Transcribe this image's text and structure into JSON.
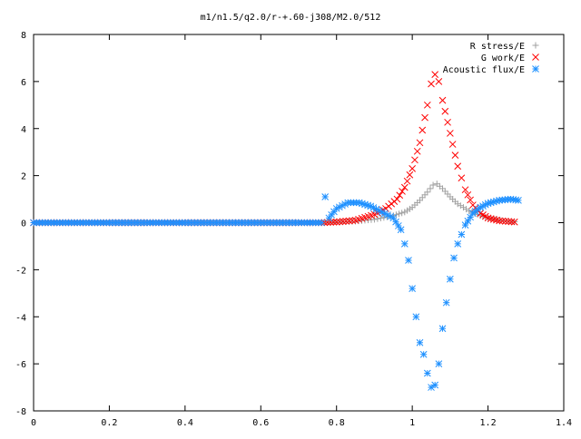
{
  "chart_data": {
    "type": "scatter",
    "title": "m1/n1.5/q2.0/r-+.60-j308/M2.0/512",
    "xlabel": "",
    "ylabel": "",
    "xlim": [
      0,
      1.4
    ],
    "ylim": [
      -8,
      8
    ],
    "x_ticks": [
      "0",
      "0.2",
      "0.4",
      "0.6",
      "0.8",
      "1",
      "1.2",
      "1.4"
    ],
    "y_ticks": [
      "8",
      "6",
      "4",
      "2",
      "0",
      "-2",
      "-4",
      "-6",
      "-8"
    ],
    "grid": false,
    "legend_position": "top-right",
    "series": [
      {
        "name": "R stress/E",
        "marker": "plus",
        "color": "#a0a0a0",
        "points": [
          [
            0.0,
            0
          ],
          [
            0.1,
            0
          ],
          [
            0.2,
            0
          ],
          [
            0.3,
            0
          ],
          [
            0.4,
            0
          ],
          [
            0.5,
            0
          ],
          [
            0.6,
            0
          ],
          [
            0.7,
            0
          ],
          [
            0.76,
            0
          ],
          [
            0.8,
            0.02
          ],
          [
            0.85,
            0.06
          ],
          [
            0.9,
            0.14
          ],
          [
            0.95,
            0.3
          ],
          [
            0.98,
            0.45
          ],
          [
            1.0,
            0.65
          ],
          [
            1.02,
            0.95
          ],
          [
            1.04,
            1.3
          ],
          [
            1.055,
            1.6
          ],
          [
            1.065,
            1.65
          ],
          [
            1.08,
            1.45
          ],
          [
            1.1,
            1.1
          ],
          [
            1.12,
            0.8
          ],
          [
            1.15,
            0.5
          ],
          [
            1.18,
            0.3
          ],
          [
            1.2,
            0.2
          ],
          [
            1.24,
            0.08
          ],
          [
            1.27,
            0.04
          ]
        ]
      },
      {
        "name": "G work/E",
        "marker": "cross",
        "color": "#ff0000",
        "points": [
          [
            0.0,
            0
          ],
          [
            0.1,
            0
          ],
          [
            0.2,
            0
          ],
          [
            0.3,
            0
          ],
          [
            0.4,
            0
          ],
          [
            0.5,
            0
          ],
          [
            0.6,
            0
          ],
          [
            0.7,
            0
          ],
          [
            0.76,
            0
          ],
          [
            0.8,
            0.03
          ],
          [
            0.85,
            0.1
          ],
          [
            0.9,
            0.35
          ],
          [
            0.93,
            0.6
          ],
          [
            0.96,
            1.0
          ],
          [
            0.98,
            1.5
          ],
          [
            1.0,
            2.3
          ],
          [
            1.02,
            3.4
          ],
          [
            1.04,
            5.0
          ],
          [
            1.05,
            5.9
          ],
          [
            1.06,
            6.3
          ],
          [
            1.07,
            6.0
          ],
          [
            1.08,
            5.2
          ],
          [
            1.1,
            3.8
          ],
          [
            1.12,
            2.4
          ],
          [
            1.14,
            1.4
          ],
          [
            1.16,
            0.75
          ],
          [
            1.18,
            0.4
          ],
          [
            1.2,
            0.2
          ],
          [
            1.23,
            0.08
          ],
          [
            1.27,
            0.03
          ]
        ]
      },
      {
        "name": "Acoustic flux/E",
        "marker": "star",
        "color": "#1e90ff",
        "points": [
          [
            0.0,
            0
          ],
          [
            0.1,
            0
          ],
          [
            0.2,
            0
          ],
          [
            0.3,
            0
          ],
          [
            0.4,
            0
          ],
          [
            0.5,
            0
          ],
          [
            0.6,
            0
          ],
          [
            0.7,
            0
          ],
          [
            0.76,
            0
          ],
          [
            0.77,
            1.1
          ],
          [
            0.78,
            0.2
          ],
          [
            0.8,
            0.6
          ],
          [
            0.83,
            0.85
          ],
          [
            0.86,
            0.85
          ],
          [
            0.89,
            0.7
          ],
          [
            0.92,
            0.45
          ],
          [
            0.95,
            0.2
          ],
          [
            0.97,
            -0.3
          ],
          [
            0.98,
            -0.9
          ],
          [
            0.99,
            -1.6
          ],
          [
            1.0,
            -2.8
          ],
          [
            1.01,
            -4.0
          ],
          [
            1.02,
            -5.1
          ],
          [
            1.03,
            -5.6
          ],
          [
            1.04,
            -6.4
          ],
          [
            1.05,
            -7.0
          ],
          [
            1.06,
            -6.9
          ],
          [
            1.07,
            -6.0
          ],
          [
            1.08,
            -4.5
          ],
          [
            1.09,
            -3.4
          ],
          [
            1.1,
            -2.4
          ],
          [
            1.11,
            -1.5
          ],
          [
            1.12,
            -0.9
          ],
          [
            1.14,
            -0.1
          ],
          [
            1.16,
            0.4
          ],
          [
            1.18,
            0.65
          ],
          [
            1.2,
            0.82
          ],
          [
            1.23,
            0.95
          ],
          [
            1.26,
            1.0
          ],
          [
            1.28,
            0.95
          ]
        ]
      }
    ]
  }
}
